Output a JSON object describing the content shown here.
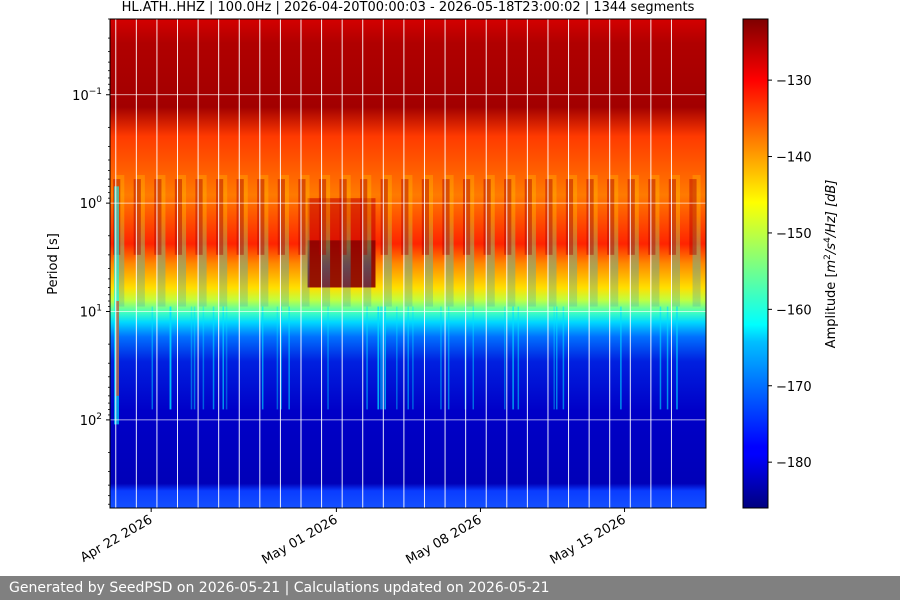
{
  "chart_data": {
    "type": "heatmap",
    "title": "HL.ATH..HHZ | 100.0Hz | 2026-04-20T00:00:03 - 2026-05-18T23:00:02 | 1344 segments",
    "ylabel": "Period [s]",
    "xlabel": "",
    "x_range": [
      "2026-04-20T00:00:03",
      "2026-05-18T23:00:02"
    ],
    "y_scale": "log",
    "y_range_seconds": [
      0.02,
      650
    ],
    "y_ticks": [
      {
        "value": 0.1,
        "base": "10",
        "exp": "−1"
      },
      {
        "value": 1,
        "base": "10",
        "exp": "0"
      },
      {
        "value": 10,
        "base": "10",
        "exp": "1"
      },
      {
        "value": 100,
        "base": "10",
        "exp": "2"
      }
    ],
    "x_ticks": [
      {
        "date": "2026-04-22",
        "label": "Apr 22 2026"
      },
      {
        "date": "2026-05-01",
        "label": "May 01 2026"
      },
      {
        "date": "2026-05-08",
        "label": "May 08 2026"
      },
      {
        "date": "2026-05-15",
        "label": "May 15 2026"
      }
    ],
    "grid": true,
    "colorbar": {
      "label_prefix": "Amplitude [",
      "label_unit": "m",
      "label_exp1": "2",
      "label_mid": "/s",
      "label_exp2": "4",
      "label_end": "/Hz] [dB]",
      "range": [
        -186,
        -122
      ],
      "ticks": [
        "−130",
        "−140",
        "−150",
        "−160",
        "−170",
        "−180"
      ],
      "tick_values": [
        -130,
        -140,
        -150,
        -160,
        -170,
        -180
      ],
      "colormap": "jet"
    }
  },
  "footer": {
    "text": "Generated by SeedPSD on 2026-05-21 | Calculations updated on 2026-05-21"
  }
}
